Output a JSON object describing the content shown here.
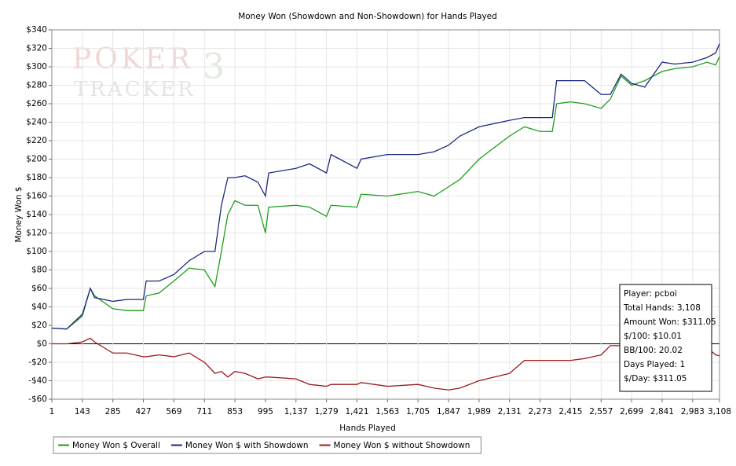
{
  "chart_data": {
    "type": "line",
    "title": "Money Won (Showdown and Non-Showdown) for Hands Played",
    "x_label": "Hands Played",
    "y_label": "Money Won $",
    "watermark": {
      "line1": "POKER",
      "badge": "3",
      "line2": "TRACKER"
    },
    "x": [
      1,
      70,
      143,
      180,
      200,
      285,
      350,
      427,
      440,
      500,
      569,
      640,
      711,
      760,
      790,
      820,
      853,
      900,
      960,
      995,
      1010,
      1137,
      1200,
      1279,
      1300,
      1421,
      1440,
      1563,
      1705,
      1780,
      1847,
      1900,
      1989,
      2131,
      2200,
      2273,
      2330,
      2350,
      2415,
      2480,
      2557,
      2600,
      2650,
      2699,
      2760,
      2841,
      2900,
      2983,
      3050,
      3090,
      3108
    ],
    "series": [
      {
        "name": "Money Won $ Overall",
        "color": "#1f9e1f",
        "values": [
          17,
          16,
          30,
          60,
          52,
          38,
          36,
          36,
          52,
          55,
          68,
          82,
          80,
          62,
          100,
          140,
          155,
          150,
          150,
          120,
          148,
          150,
          148,
          138,
          150,
          148,
          162,
          160,
          165,
          160,
          170,
          178,
          200,
          225,
          235,
          230,
          230,
          260,
          262,
          260,
          255,
          265,
          290,
          280,
          285,
          295,
          298,
          300,
          305,
          302,
          311.05
        ]
      },
      {
        "name": "Money Won $ with Showdown",
        "color": "#1c2a80",
        "values": [
          17,
          16,
          32,
          60,
          50,
          46,
          48,
          48,
          68,
          68,
          75,
          90,
          100,
          100,
          150,
          180,
          180,
          182,
          175,
          160,
          185,
          190,
          195,
          185,
          205,
          190,
          200,
          205,
          205,
          208,
          215,
          225,
          235,
          242,
          245,
          245,
          245,
          285,
          285,
          285,
          270,
          270,
          292,
          282,
          278,
          305,
          303,
          305,
          310,
          315,
          325
        ]
      },
      {
        "name": "Money Won $ without Showdown",
        "color": "#9c1c1c",
        "values": [
          0,
          0,
          2,
          6,
          2,
          -10,
          -10,
          -14,
          -14,
          -12,
          -14,
          -10,
          -20,
          -32,
          -30,
          -36,
          -30,
          -32,
          -38,
          -36,
          -36,
          -38,
          -44,
          -46,
          -44,
          -44,
          -42,
          -46,
          -44,
          -48,
          -50,
          -48,
          -40,
          -32,
          -18,
          -18,
          -18,
          -18,
          -18,
          -16,
          -12,
          -2,
          -2,
          -8,
          -5,
          -10,
          -4,
          -6,
          -4,
          -12,
          -13
        ]
      }
    ],
    "xlim": [
      1,
      3108
    ],
    "xticks": [
      1,
      143,
      285,
      427,
      569,
      711,
      853,
      995,
      {
        "value": 1137,
        "label": "1,137"
      },
      {
        "value": 1279,
        "label": "1,279"
      },
      {
        "value": 1421,
        "label": "1,421"
      },
      {
        "value": 1563,
        "label": "1,563"
      },
      {
        "value": 1705,
        "label": "1,705"
      },
      {
        "value": 1847,
        "label": "1,847"
      },
      {
        "value": 1989,
        "label": "1,989"
      },
      {
        "value": 2131,
        "label": "2,131"
      },
      {
        "value": 2273,
        "label": "2,273"
      },
      {
        "value": 2415,
        "label": "2,415"
      },
      {
        "value": 2557,
        "label": "2,557"
      },
      {
        "value": 2699,
        "label": "2,699"
      },
      {
        "value": 2841,
        "label": "2,841"
      },
      {
        "value": 2983,
        "label": "2,983"
      },
      {
        "value": 3108,
        "label": "3,108"
      }
    ],
    "ylim": [
      -60,
      340
    ],
    "yticks": [
      {
        "value": -60,
        "label": "-$60"
      },
      {
        "value": -40,
        "label": "-$40"
      },
      {
        "value": -20,
        "label": "-$20"
      },
      {
        "value": 0,
        "label": "$0"
      },
      {
        "value": 20,
        "label": "$20"
      },
      {
        "value": 40,
        "label": "$40"
      },
      {
        "value": 60,
        "label": "$60"
      },
      {
        "value": 80,
        "label": "$80"
      },
      {
        "value": 100,
        "label": "$100"
      },
      {
        "value": 120,
        "label": "$120"
      },
      {
        "value": 140,
        "label": "$140"
      },
      {
        "value": 160,
        "label": "$160"
      },
      {
        "value": 180,
        "label": "$180"
      },
      {
        "value": 200,
        "label": "$200"
      },
      {
        "value": 220,
        "label": "$220"
      },
      {
        "value": 240,
        "label": "$240"
      },
      {
        "value": 260,
        "label": "$260"
      },
      {
        "value": 280,
        "label": "$280"
      },
      {
        "value": 300,
        "label": "$300"
      },
      {
        "value": 320,
        "label": "$320"
      },
      {
        "value": 340,
        "label": "$340"
      }
    ],
    "grid": true,
    "legend": "bottom-left",
    "info_box": [
      "Player: pcboi",
      "Total Hands: 3,108",
      "Amount Won: $311.05",
      "$/100: $10.01",
      "BB/100: 20.02",
      "Days Played: 1",
      "$/Day: $311.05"
    ]
  }
}
